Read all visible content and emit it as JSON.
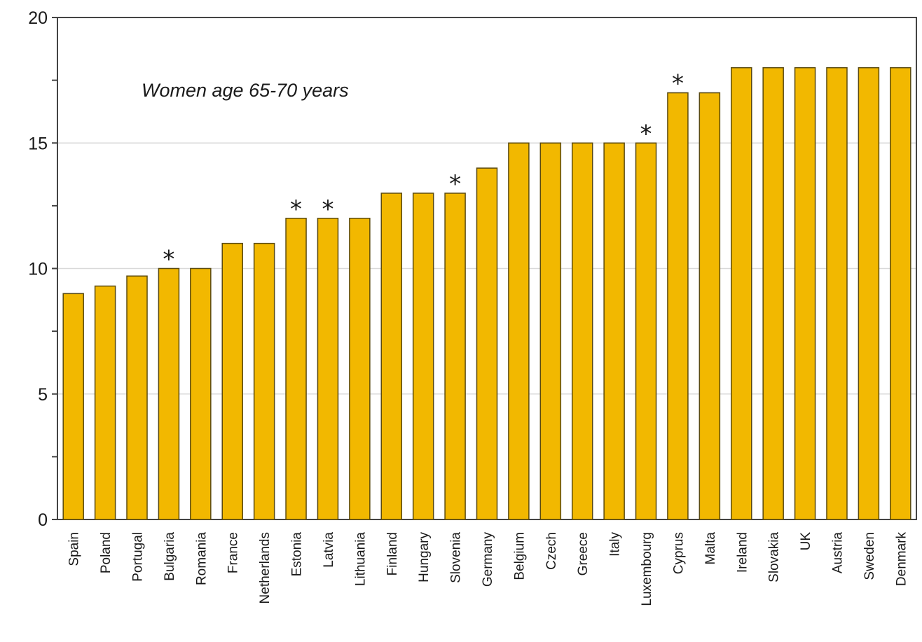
{
  "chart_data": {
    "type": "bar",
    "title": "",
    "xlabel": "",
    "ylabel": "",
    "ylim": [
      0,
      20
    ],
    "yticks": [
      "0",
      "5",
      "10",
      "15",
      "20"
    ],
    "grid": true,
    "annotation": "Women age 65-70 years",
    "marker_symbol": "*",
    "bar_color": "#f2b800",
    "bar_edge_color": "#5a4a10",
    "categories": [
      "Spain",
      "Poland",
      "Portugal",
      "Bulgaria",
      "Romania",
      "France",
      "Netherlands",
      "Estonia",
      "Latvia",
      "Lithuania",
      "Finland",
      "Hungary",
      "Slovenia",
      "Germany",
      "Belgium",
      "Czech",
      "Greece",
      "Italy",
      "Luxembourg",
      "Cyprus",
      "Malta",
      "Ireland",
      "Slovakia",
      "UK",
      "Austria",
      "Sweden",
      "Denmark"
    ],
    "values": [
      9,
      9.3,
      9.7,
      10,
      10,
      11,
      11,
      12,
      12,
      12,
      13,
      13,
      13,
      14,
      15,
      15,
      15,
      15,
      15,
      17,
      17,
      18,
      18,
      18,
      18,
      18,
      18
    ],
    "marked": [
      false,
      false,
      false,
      true,
      false,
      false,
      false,
      true,
      true,
      false,
      false,
      false,
      true,
      false,
      false,
      false,
      false,
      false,
      true,
      true,
      false,
      false,
      false,
      false,
      false,
      false,
      false
    ]
  }
}
